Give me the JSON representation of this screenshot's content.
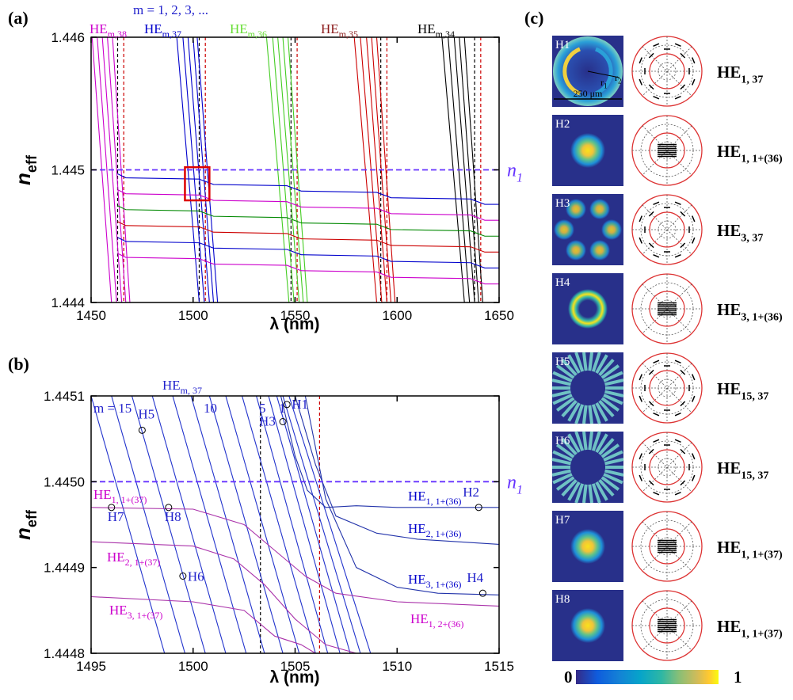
{
  "chart_data": [
    {
      "type": "line",
      "panel": "(a)",
      "xlabel": "λ (nm)",
      "ylabel": {
        "text": "n",
        "sub": "eff"
      },
      "xlim": [
        1450,
        1650
      ],
      "xticks": [
        1450,
        1500,
        1550,
        1600,
        1650
      ],
      "ylim": [
        1.444,
        1.446
      ],
      "yticks": [
        1.444,
        1.445,
        1.446
      ],
      "annotations": [
        {
          "text": "m = 1, 2, 3, ...",
          "color": "#2222cc"
        }
      ],
      "family_labels": [
        {
          "text": "HE",
          "sub": "m,38",
          "color": "#cc00cc"
        },
        {
          "text": "HE",
          "sub": "m,37",
          "color": "#0000cc"
        },
        {
          "text": "HE",
          "sub": "m,36",
          "color": "#66dd33"
        },
        {
          "text": "HE",
          "sub": "m,35",
          "color": "#8b1a1a"
        },
        {
          "text": "HE",
          "sub": "m,34",
          "color": "#000000"
        }
      ],
      "hline": {
        "y": 1.445,
        "color": "#6633ff",
        "label": "n",
        "sub": "1"
      },
      "highlight": {
        "x": [
          1496,
          1508
        ],
        "y": [
          1.44477,
          1.44502
        ],
        "color": "#dd0000"
      },
      "vlines": [
        {
          "x": 1463,
          "color": "#000000"
        },
        {
          "x": 1466,
          "color": "#cc0000"
        },
        {
          "x": 1503,
          "color": "#000000"
        },
        {
          "x": 1506,
          "color": "#cc0000"
        },
        {
          "x": 1548,
          "color": "#000000"
        },
        {
          "x": 1551,
          "color": "#cc0000"
        },
        {
          "x": 1592,
          "color": "#000000"
        },
        {
          "x": 1595,
          "color": "#cc0000"
        },
        {
          "x": 1638,
          "color": "#000000"
        },
        {
          "x": 1641,
          "color": "#cc0000"
        }
      ],
      "series": [
        {
          "color": "#cc00cc",
          "x": [
            1450.5,
            1460
          ],
          "values": [
            1.446,
            1.444
          ]
        },
        {
          "color": "#cc00cc",
          "x": [
            1453,
            1462.5
          ],
          "values": [
            1.446,
            1.444
          ]
        },
        {
          "color": "#cc00cc",
          "x": [
            1455.5,
            1465
          ],
          "values": [
            1.446,
            1.444
          ]
        },
        {
          "color": "#cc00cc",
          "x": [
            1458,
            1467
          ],
          "values": [
            1.446,
            1.444
          ]
        },
        {
          "color": "#cc00cc",
          "x": [
            1460.5,
            1469
          ],
          "values": [
            1.446,
            1.444
          ]
        },
        {
          "color": "#0000cc",
          "x": [
            1492,
            1503
          ],
          "values": [
            1.446,
            1.444
          ]
        },
        {
          "color": "#0000cc",
          "x": [
            1495,
            1505.5
          ],
          "values": [
            1.446,
            1.444
          ]
        },
        {
          "color": "#0000cc",
          "x": [
            1497.5,
            1508
          ],
          "values": [
            1.446,
            1.444
          ]
        },
        {
          "color": "#0000cc",
          "x": [
            1500,
            1510
          ],
          "values": [
            1.446,
            1.444
          ]
        },
        {
          "color": "#0000cc",
          "x": [
            1502,
            1512
          ],
          "values": [
            1.446,
            1.444
          ]
        },
        {
          "color": "#44cc22",
          "x": [
            1536,
            1547
          ],
          "values": [
            1.446,
            1.444
          ]
        },
        {
          "color": "#44cc22",
          "x": [
            1539,
            1549.5
          ],
          "values": [
            1.446,
            1.444
          ]
        },
        {
          "color": "#44cc22",
          "x": [
            1541.5,
            1552
          ],
          "values": [
            1.446,
            1.444
          ]
        },
        {
          "color": "#44cc22",
          "x": [
            1544,
            1554
          ],
          "values": [
            1.446,
            1.444
          ]
        },
        {
          "color": "#44cc22",
          "x": [
            1546.5,
            1556
          ],
          "values": [
            1.446,
            1.444
          ]
        },
        {
          "color": "#cc0000",
          "x": [
            1579,
            1590
          ],
          "values": [
            1.446,
            1.444
          ]
        },
        {
          "color": "#cc0000",
          "x": [
            1582,
            1592.5
          ],
          "values": [
            1.446,
            1.444
          ]
        },
        {
          "color": "#cc0000",
          "x": [
            1585,
            1595
          ],
          "values": [
            1.446,
            1.444
          ]
        },
        {
          "color": "#cc0000",
          "x": [
            1587.5,
            1597
          ],
          "values": [
            1.446,
            1.444
          ]
        },
        {
          "color": "#cc0000",
          "x": [
            1590,
            1599
          ],
          "values": [
            1.446,
            1.444
          ]
        },
        {
          "color": "#000000",
          "x": [
            1622,
            1633
          ],
          "values": [
            1.446,
            1.444
          ]
        },
        {
          "color": "#000000",
          "x": [
            1625,
            1635.5
          ],
          "values": [
            1.446,
            1.444
          ]
        },
        {
          "color": "#000000",
          "x": [
            1628,
            1638
          ],
          "values": [
            1.446,
            1.444
          ]
        },
        {
          "color": "#000000",
          "x": [
            1630.5,
            1640
          ],
          "values": [
            1.446,
            1.444
          ]
        },
        {
          "color": "#000000",
          "x": [
            1633,
            1642
          ],
          "values": [
            1.446,
            1.444
          ]
        },
        {
          "color": "#0000cc",
          "x": [
            1463,
            1467,
            1503,
            1510,
            1546,
            1553,
            1590,
            1597,
            1636,
            1643,
            1650
          ],
          "values": [
            1.44497,
            1.44494,
            1.44493,
            1.44489,
            1.44488,
            1.44484,
            1.44483,
            1.44479,
            1.44478,
            1.44474,
            1.44474
          ]
        },
        {
          "color": "#cc00cc",
          "x": [
            1463,
            1467,
            1503,
            1510,
            1546,
            1553,
            1590,
            1597,
            1636,
            1643,
            1650
          ],
          "values": [
            1.44485,
            1.44482,
            1.44481,
            1.44477,
            1.44476,
            1.44472,
            1.44471,
            1.44467,
            1.44466,
            1.44462,
            1.44462
          ]
        },
        {
          "color": "#008800",
          "x": [
            1463,
            1467,
            1503,
            1510,
            1546,
            1553,
            1590,
            1597,
            1636,
            1643,
            1650
          ],
          "values": [
            1.44473,
            1.4447,
            1.44469,
            1.44465,
            1.44464,
            1.4446,
            1.44459,
            1.44455,
            1.44454,
            1.4445,
            1.4445
          ]
        },
        {
          "color": "#cc0000",
          "x": [
            1463,
            1467,
            1503,
            1510,
            1546,
            1553,
            1590,
            1597,
            1636,
            1643,
            1650
          ],
          "values": [
            1.44461,
            1.44458,
            1.44457,
            1.44453,
            1.44452,
            1.44448,
            1.44447,
            1.44443,
            1.44442,
            1.44438,
            1.44438
          ]
        },
        {
          "color": "#0000cc",
          "x": [
            1463,
            1467,
            1503,
            1510,
            1546,
            1553,
            1590,
            1597,
            1636,
            1643,
            1650
          ],
          "values": [
            1.44449,
            1.44446,
            1.44445,
            1.44441,
            1.4444,
            1.44436,
            1.44435,
            1.44431,
            1.4443,
            1.44426,
            1.44426
          ]
        },
        {
          "color": "#cc00cc",
          "x": [
            1463,
            1467,
            1503,
            1510,
            1546,
            1553,
            1590,
            1597,
            1636,
            1643,
            1650
          ],
          "values": [
            1.44437,
            1.44434,
            1.44433,
            1.44429,
            1.44428,
            1.44424,
            1.44423,
            1.44419,
            1.44418,
            1.44414,
            1.44414
          ]
        }
      ]
    },
    {
      "type": "line",
      "panel": "(b)",
      "xlabel": "λ (nm)",
      "ylabel": {
        "text": "n",
        "sub": "eff"
      },
      "xlim": [
        1495,
        1515
      ],
      "xticks": [
        1495,
        1500,
        1505,
        1510,
        1515
      ],
      "ylim": [
        1.4448,
        1.4451
      ],
      "yticks": [
        1.4448,
        1.4449,
        {
          "value": 1.445,
          "label": "1.4450"
        },
        1.4451
      ],
      "annotations": [
        {
          "text": "HE",
          "sub": "m, 37",
          "color": "#2222cc"
        },
        {
          "text": "m = 15",
          "color": "#2222cc"
        },
        {
          "text": "10",
          "color": "#2222cc"
        },
        {
          "text": "5",
          "color": "#2222cc"
        },
        {
          "text": "1",
          "color": "#2222cc"
        }
      ],
      "hline": {
        "y": 1.445,
        "color": "#6633ff",
        "label": "n",
        "sub": "1"
      },
      "vlines": [
        {
          "x": 1503.3,
          "color": "#000000"
        },
        {
          "x": 1506.2,
          "color": "#cc0000"
        }
      ],
      "curve_labels": [
        {
          "text": "HE",
          "sub": "1, 1+(36)",
          "color": "#0000cc"
        },
        {
          "text": "HE",
          "sub": "2, 1+(36)",
          "color": "#0000cc"
        },
        {
          "text": "HE",
          "sub": "3, 1+(36)",
          "color": "#0000cc"
        },
        {
          "text": "HE",
          "sub": "1, 2+(36)",
          "color": "#cc00cc"
        },
        {
          "text": "HE",
          "sub": "1, 1+(37)",
          "color": "#cc00cc"
        },
        {
          "text": "HE",
          "sub": "2, 1+(37)",
          "color": "#cc00cc"
        },
        {
          "text": "HE",
          "sub": "3, 1+(37)",
          "color": "#cc00cc"
        }
      ],
      "points": [
        {
          "label": "H5",
          "x": 1497.5,
          "y": 1.44506
        },
        {
          "label": "H1",
          "x": 1504.6,
          "y": 1.44509
        },
        {
          "label": "H3",
          "x": 1504.4,
          "y": 1.44507
        },
        {
          "label": "H7",
          "x": 1496,
          "y": 1.44497
        },
        {
          "label": "H8",
          "x": 1498.8,
          "y": 1.44497
        },
        {
          "label": "H2",
          "x": 1514,
          "y": 1.44497
        },
        {
          "label": "H6",
          "x": 1499.5,
          "y": 1.44489
        },
        {
          "label": "H4",
          "x": 1514.2,
          "y": 1.44487
        }
      ],
      "series": [
        {
          "color": "#2233cc",
          "x": [
            1495.0,
            1498.6
          ],
          "values": [
            1.4451,
            1.4448
          ]
        },
        {
          "color": "#2233cc",
          "x": [
            1496.0,
            1499.6
          ],
          "values": [
            1.4451,
            1.4448
          ]
        },
        {
          "color": "#2233cc",
          "x": [
            1497.0,
            1500.6
          ],
          "values": [
            1.4451,
            1.4448
          ]
        },
        {
          "color": "#2233cc",
          "x": [
            1498.0,
            1501.6
          ],
          "values": [
            1.4451,
            1.4448
          ]
        },
        {
          "color": "#2233cc",
          "x": [
            1499.0,
            1502.6
          ],
          "values": [
            1.4451,
            1.4448
          ]
        },
        {
          "color": "#2233cc",
          "x": [
            1499.9,
            1503.5
          ],
          "values": [
            1.4451,
            1.4448
          ]
        },
        {
          "color": "#2233cc",
          "x": [
            1500.8,
            1504.4
          ],
          "values": [
            1.4451,
            1.4448
          ]
        },
        {
          "color": "#2233cc",
          "x": [
            1501.6,
            1505.2
          ],
          "values": [
            1.4451,
            1.4448
          ]
        },
        {
          "color": "#2233cc",
          "x": [
            1502.4,
            1506.0
          ],
          "values": [
            1.4451,
            1.4448
          ]
        },
        {
          "color": "#2233cc",
          "x": [
            1503.1,
            1506.6
          ],
          "values": [
            1.4451,
            1.4448
          ]
        },
        {
          "color": "#2233cc",
          "x": [
            1503.7,
            1507.2
          ],
          "values": [
            1.4451,
            1.4448
          ]
        },
        {
          "color": "#2233cc",
          "x": [
            1504.1,
            1507.7
          ],
          "values": [
            1.4451,
            1.4448
          ]
        },
        {
          "color": "#2233cc",
          "x": [
            1504.4,
            1508.2
          ],
          "values": [
            1.4451,
            1.4448
          ]
        },
        {
          "color": "#2233cc",
          "x": [
            1504.7,
            1508.7
          ],
          "values": [
            1.4451,
            1.4448
          ]
        },
        {
          "color": "#2233aa",
          "x": [
            1504.3,
            1505,
            1505.6,
            1506.5,
            1508,
            1510,
            1515
          ],
          "values": [
            1.4451,
            1.44503,
            1.44499,
            1.44497,
            1.444972,
            1.44497,
            1.44497
          ]
        },
        {
          "color": "#2233aa",
          "x": [
            1505,
            1506,
            1507,
            1509,
            1511,
            1515
          ],
          "values": [
            1.4451,
            1.44502,
            1.44496,
            1.44494,
            1.444933,
            1.444927
          ]
        },
        {
          "color": "#2233aa",
          "x": [
            1505.5,
            1506.5,
            1508,
            1510,
            1512,
            1515
          ],
          "values": [
            1.4451,
            1.44498,
            1.4449,
            1.444877,
            1.44487,
            1.444868
          ]
        },
        {
          "color": "#aa33aa",
          "x": [
            1495,
            1500,
            1502.5,
            1504,
            1505.5,
            1507,
            1510,
            1515
          ],
          "values": [
            1.44497,
            1.444968,
            1.44495,
            1.44492,
            1.44489,
            1.44487,
            1.44486,
            1.444855
          ]
        },
        {
          "color": "#aa33aa",
          "x": [
            1495,
            1500,
            1502,
            1503.5,
            1505,
            1506.5,
            1508
          ],
          "values": [
            1.44493,
            1.444925,
            1.44491,
            1.44488,
            1.44484,
            1.44481,
            1.4448
          ]
        },
        {
          "color": "#aa33aa",
          "x": [
            1495,
            1500,
            1502.5,
            1504,
            1505.3,
            1506
          ],
          "values": [
            1.444866,
            1.44486,
            1.44485,
            1.44482,
            1.44481,
            1.4448
          ]
        }
      ]
    }
  ],
  "panel_c": {
    "label": "(c)",
    "scale": "250 μm",
    "radii": [
      {
        "text": "r",
        "sub": "1"
      },
      {
        "text": "r",
        "sub": "2"
      }
    ],
    "modes": [
      {
        "tag": "H1",
        "name": "HE",
        "sub": "1, 37"
      },
      {
        "tag": "H2",
        "name": "HE",
        "sub": "1, 1+(36)"
      },
      {
        "tag": "H3",
        "name": "HE",
        "sub": "3, 37"
      },
      {
        "tag": "H4",
        "name": "HE",
        "sub": "3, 1+(36)"
      },
      {
        "tag": "H5",
        "name": "HE",
        "sub": "15, 37"
      },
      {
        "tag": "H6",
        "name": "HE",
        "sub": "15, 37"
      },
      {
        "tag": "H7",
        "name": "HE",
        "sub": "1, 1+(37)"
      },
      {
        "tag": "H8",
        "name": "HE",
        "sub": "1, 1+(37)"
      }
    ],
    "colorbar": {
      "ticks": [
        0,
        1
      ]
    }
  }
}
